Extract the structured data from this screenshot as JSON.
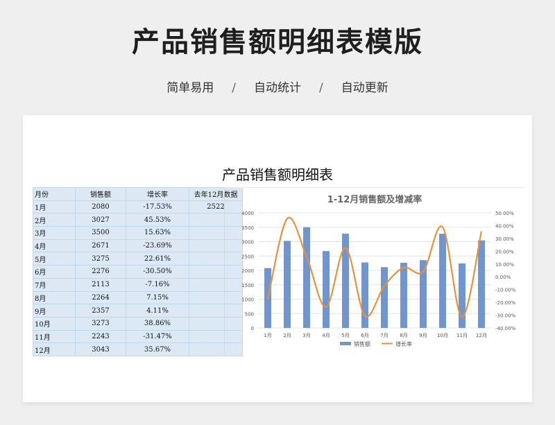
{
  "header": {
    "title": "产品销售额明细表模版",
    "tagline": [
      "简单易用",
      "自动统计",
      "自动更新"
    ],
    "separator": "/"
  },
  "sheet": {
    "title": "产品销售额明细表",
    "columns": [
      "月份",
      "销售额",
      "增长率",
      "去年12月数据"
    ],
    "rows": [
      [
        "1月",
        "2080",
        "-17.53%",
        "2522"
      ],
      [
        "2月",
        "3027",
        "45.53%",
        ""
      ],
      [
        "3月",
        "3500",
        "15.63%",
        ""
      ],
      [
        "4月",
        "2671",
        "-23.69%",
        ""
      ],
      [
        "5月",
        "3275",
        "22.61%",
        ""
      ],
      [
        "6月",
        "2276",
        "-30.50%",
        ""
      ],
      [
        "7月",
        "2113",
        "-7.16%",
        ""
      ],
      [
        "8月",
        "2264",
        "7.15%",
        ""
      ],
      [
        "9月",
        "2357",
        "4.11%",
        ""
      ],
      [
        "10月",
        "3273",
        "38.86%",
        ""
      ],
      [
        "11月",
        "2243",
        "-31.47%",
        ""
      ],
      [
        "12月",
        "3043",
        "35.67%",
        ""
      ]
    ]
  },
  "colors": {
    "bar": "#7196cf",
    "line": "#e8913a",
    "cell_bg": "#dce9f5"
  },
  "chart_data": {
    "type": "bar",
    "title": "1-12月销售额及增减率",
    "categories": [
      "1月",
      "2月",
      "3月",
      "4月",
      "5月",
      "6月",
      "7月",
      "8月",
      "9月",
      "10月",
      "11月",
      "12月"
    ],
    "series": [
      {
        "name": "销售额",
        "type": "bar",
        "axis": "left",
        "values": [
          2080,
          3027,
          3500,
          2671,
          3275,
          2276,
          2113,
          2264,
          2357,
          3273,
          2243,
          3043
        ]
      },
      {
        "name": "增长率",
        "type": "line",
        "axis": "right",
        "values": [
          -17.53,
          45.53,
          15.63,
          -23.69,
          22.61,
          -30.5,
          -7.16,
          7.15,
          4.11,
          38.86,
          -31.47,
          35.67
        ]
      }
    ],
    "ylim": [
      0,
      4000
    ],
    "y_ticks": [
      "0",
      "500",
      "1000",
      "1500",
      "2000",
      "2500",
      "3000",
      "3500",
      "4000"
    ],
    "y2lim": [
      -40,
      50
    ],
    "y2_ticks": [
      "-40.00%",
      "-30.00%",
      "-20.00%",
      "-10.00%",
      "0.00%",
      "10.00%",
      "20.00%",
      "30.00%",
      "40.00%",
      "50.00%"
    ],
    "legend_position": "bottom",
    "grid": true
  }
}
